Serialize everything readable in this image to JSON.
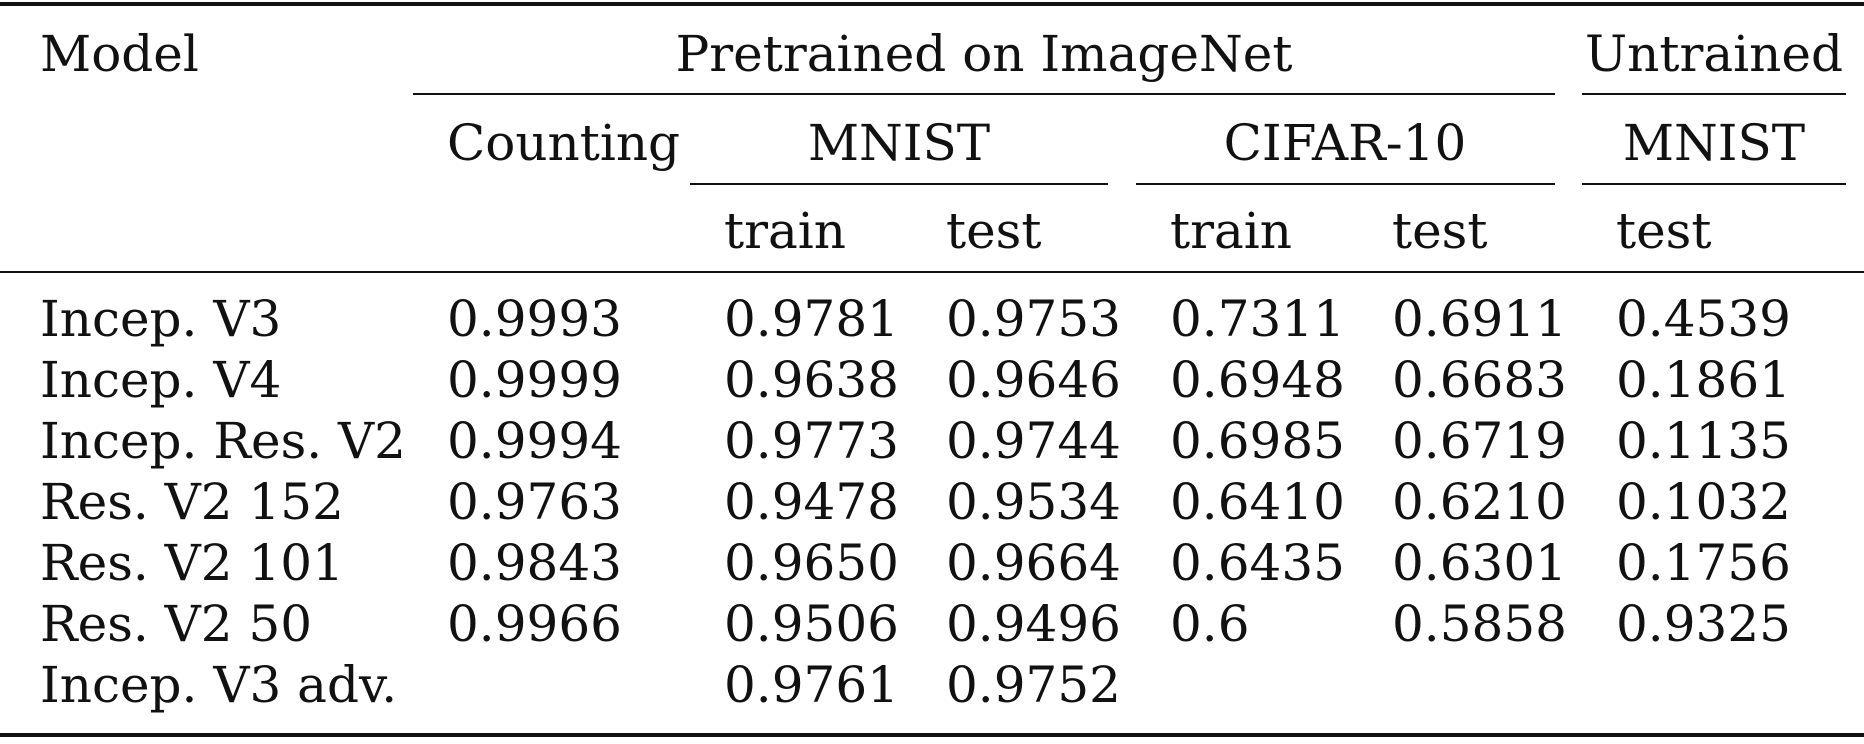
{
  "headers": {
    "model": "Model",
    "pretrained_group": "Pretrained on ImageNet",
    "untrained_group": "Untrained",
    "counting": "Counting",
    "mnist": "MNIST",
    "cifar10": "CIFAR-10",
    "untrained_mnist": "MNIST",
    "mnist_train": "train",
    "mnist_test": "test",
    "cifar_train": "train",
    "cifar_test": "test",
    "untrained_test": "test"
  },
  "rows": [
    {
      "model": "Incep. V3",
      "counting": "0.9993",
      "mnist_train": "0.9781",
      "mnist_test": "0.9753",
      "cifar_train": "0.7311",
      "cifar_test": "0.6911",
      "untrained_test": "0.4539"
    },
    {
      "model": "Incep. V4",
      "counting": "0.9999",
      "mnist_train": "0.9638",
      "mnist_test": "0.9646",
      "cifar_train": "0.6948",
      "cifar_test": "0.6683",
      "untrained_test": "0.1861"
    },
    {
      "model": "Incep. Res. V2",
      "counting": "0.9994",
      "mnist_train": "0.9773",
      "mnist_test": "0.9744",
      "cifar_train": "0.6985",
      "cifar_test": "0.6719",
      "untrained_test": "0.1135"
    },
    {
      "model": "Res. V2 152",
      "counting": "0.9763",
      "mnist_train": "0.9478",
      "mnist_test": "0.9534",
      "cifar_train": "0.6410",
      "cifar_test": "0.6210",
      "untrained_test": "0.1032"
    },
    {
      "model": "Res. V2 101",
      "counting": "0.9843",
      "mnist_train": "0.9650",
      "mnist_test": "0.9664",
      "cifar_train": "0.6435",
      "cifar_test": "0.6301",
      "untrained_test": "0.1756"
    },
    {
      "model": "Res. V2 50",
      "counting": "0.9966",
      "mnist_train": "0.9506",
      "mnist_test": "0.9496",
      "cifar_train": "0.6",
      "cifar_test": "0.5858",
      "untrained_test": "0.9325"
    },
    {
      "model": "Incep. V3 adv.",
      "counting": "",
      "mnist_train": "0.9761",
      "mnist_test": "0.9752",
      "cifar_train": "",
      "cifar_test": "",
      "untrained_test": ""
    }
  ]
}
